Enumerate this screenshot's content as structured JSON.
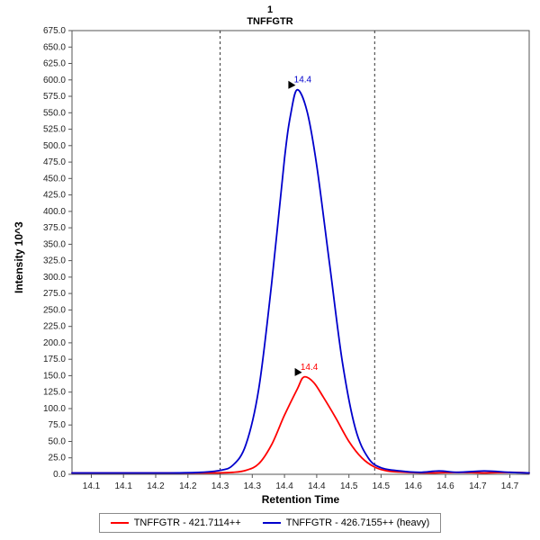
{
  "chart_data": {
    "type": "line",
    "title": "1",
    "subtitle": "TNFFGTR",
    "xlabel": "Retention Time",
    "ylabel": "Intensity 10^3",
    "xlim": [
      14.02,
      14.73
    ],
    "ylim": [
      0,
      675
    ],
    "grid": false,
    "legend_position": "bottom",
    "ytick_format_decimals": 1,
    "yticks": [
      0,
      25,
      50,
      75,
      100,
      125,
      150,
      175,
      200,
      225,
      250,
      275,
      300,
      325,
      350,
      375,
      400,
      425,
      450,
      475,
      500,
      525,
      550,
      575,
      600,
      625,
      650,
      675
    ],
    "xticks": [
      {
        "v": 14.05,
        "label": "14.1"
      },
      {
        "v": 14.1,
        "label": "14.1"
      },
      {
        "v": 14.15,
        "label": "14.2"
      },
      {
        "v": 14.2,
        "label": "14.2"
      },
      {
        "v": 14.25,
        "label": "14.3"
      },
      {
        "v": 14.3,
        "label": "14.3"
      },
      {
        "v": 14.35,
        "label": "14.4"
      },
      {
        "v": 14.4,
        "label": "14.4"
      },
      {
        "v": 14.45,
        "label": "14.5"
      },
      {
        "v": 14.5,
        "label": "14.5"
      },
      {
        "v": 14.55,
        "label": "14.6"
      },
      {
        "v": 14.6,
        "label": "14.6"
      },
      {
        "v": 14.65,
        "label": "14.7"
      },
      {
        "v": 14.7,
        "label": "14.7"
      }
    ],
    "integration_boundaries": [
      14.25,
      14.49
    ],
    "series": [
      {
        "name": "TNFFGTR - 421.7114++",
        "color": "#ff0000",
        "peak_annotation": {
          "label": "14.4",
          "x": 14.38,
          "y": 148
        },
        "points": [
          [
            14.02,
            2
          ],
          [
            14.1,
            2
          ],
          [
            14.18,
            2
          ],
          [
            14.24,
            2
          ],
          [
            14.27,
            3
          ],
          [
            14.29,
            6
          ],
          [
            14.31,
            16
          ],
          [
            14.33,
            45
          ],
          [
            14.35,
            90
          ],
          [
            14.37,
            130
          ],
          [
            14.38,
            148
          ],
          [
            14.395,
            140
          ],
          [
            14.41,
            118
          ],
          [
            14.43,
            85
          ],
          [
            14.45,
            50
          ],
          [
            14.47,
            25
          ],
          [
            14.49,
            11
          ],
          [
            14.51,
            5
          ],
          [
            14.54,
            3
          ],
          [
            14.58,
            2
          ],
          [
            14.62,
            3
          ],
          [
            14.66,
            2
          ],
          [
            14.7,
            3
          ],
          [
            14.73,
            2
          ]
        ]
      },
      {
        "name": "TNFFGTR - 426.7155++ (heavy)",
        "color": "#0000cc",
        "peak_annotation": {
          "label": "14.4",
          "x": 14.37,
          "y": 585
        },
        "points": [
          [
            14.02,
            2
          ],
          [
            14.1,
            2
          ],
          [
            14.17,
            2
          ],
          [
            14.22,
            3
          ],
          [
            14.25,
            6
          ],
          [
            14.27,
            14
          ],
          [
            14.29,
            45
          ],
          [
            14.31,
            130
          ],
          [
            14.33,
            290
          ],
          [
            14.35,
            480
          ],
          [
            14.36,
            550
          ],
          [
            14.37,
            585
          ],
          [
            14.385,
            552
          ],
          [
            14.4,
            470
          ],
          [
            14.42,
            320
          ],
          [
            14.44,
            170
          ],
          [
            14.46,
            70
          ],
          [
            14.48,
            25
          ],
          [
            14.5,
            10
          ],
          [
            14.53,
            5
          ],
          [
            14.56,
            3
          ],
          [
            14.59,
            5
          ],
          [
            14.62,
            3
          ],
          [
            14.66,
            5
          ],
          [
            14.7,
            3
          ],
          [
            14.73,
            2
          ]
        ]
      }
    ]
  }
}
